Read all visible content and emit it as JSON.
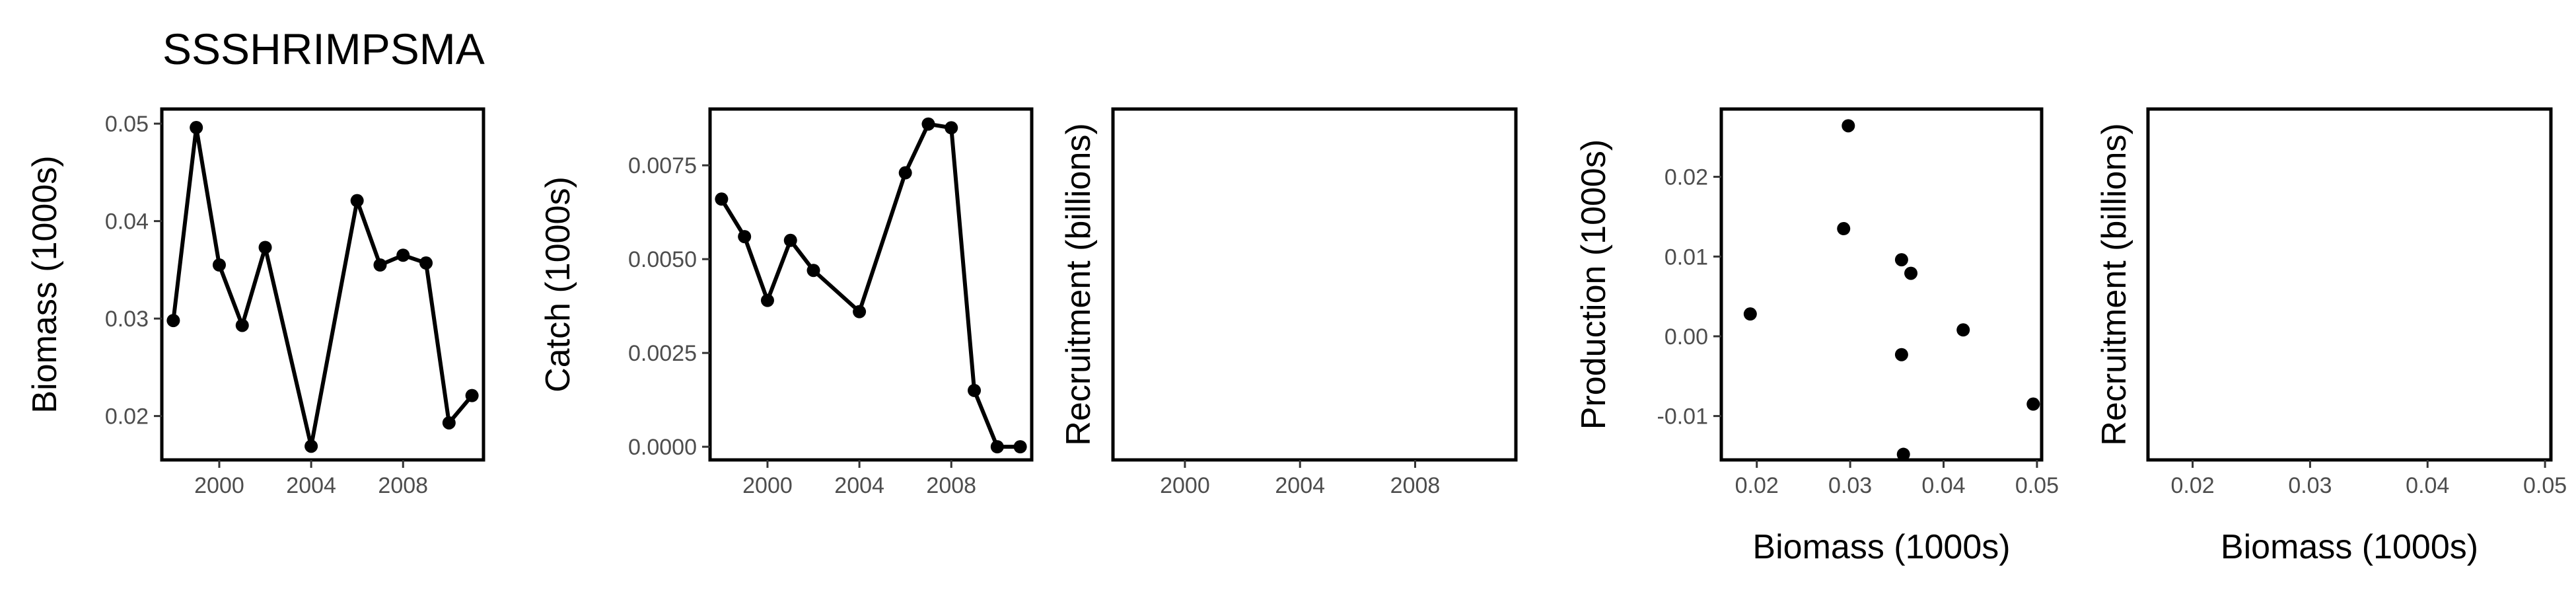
{
  "page": {
    "title": "SSSHRIMPSMA"
  },
  "chart_data": [
    {
      "type": "line",
      "xlabel": "",
      "ylabel": "Biomass (1000s)",
      "xlim": [
        1997.5,
        2011.5
      ],
      "ylim": [
        0.0155,
        0.0515
      ],
      "xticks": [
        2000,
        2004,
        2008
      ],
      "xtick_labels": [
        "2000",
        "2004",
        "2008"
      ],
      "yticks": [
        0.02,
        0.03,
        0.04,
        0.05
      ],
      "ytick_labels": [
        "0.02",
        "0.03",
        "0.04",
        "0.05"
      ],
      "x": [
        1998,
        1999,
        2000,
        2001,
        2002,
        2004,
        2006,
        2007,
        2008,
        2009,
        2010,
        2011
      ],
      "values": [
        0.0298,
        0.0496,
        0.0355,
        0.0293,
        0.0373,
        0.0169,
        0.0421,
        0.0355,
        0.0365,
        0.0357,
        0.0193,
        0.0221
      ],
      "markers": true,
      "grid": false
    },
    {
      "type": "line",
      "xlabel": "",
      "ylabel": "Catch (1000s)",
      "xlim": [
        1997.5,
        2011.5
      ],
      "ylim": [
        -0.00035,
        0.009
      ],
      "xticks": [
        2000,
        2004,
        2008
      ],
      "xtick_labels": [
        "2000",
        "2004",
        "2008"
      ],
      "yticks": [
        0.0,
        0.0025,
        0.005,
        0.0075
      ],
      "ytick_labels": [
        "0.0000",
        "0.0025",
        "0.0050",
        "0.0075"
      ],
      "x": [
        1998,
        1999,
        2000,
        2001,
        2002,
        2004,
        2006,
        2007,
        2008,
        2009,
        2010,
        2011
      ],
      "values": [
        0.0066,
        0.0056,
        0.0039,
        0.0055,
        0.0047,
        0.0036,
        0.0073,
        0.0086,
        0.0085,
        0.0015,
        0.0,
        0.0
      ],
      "markers": true,
      "grid": false
    },
    {
      "type": "line",
      "xlabel": "",
      "ylabel": "Recruitment (billions)",
      "xlim": [
        1997.5,
        2011.5
      ],
      "ylim": [
        0,
        1
      ],
      "xticks": [
        2000,
        2004,
        2008
      ],
      "xtick_labels": [
        "2000",
        "2004",
        "2008"
      ],
      "yticks": [],
      "ytick_labels": [],
      "x": [],
      "values": [],
      "markers": false,
      "grid": false
    },
    {
      "type": "scatter",
      "xlabel": "Biomass (1000s)",
      "ylabel": "Production (1000s)",
      "xlim": [
        0.0162,
        0.0505
      ],
      "ylim": [
        -0.0155,
        0.0285
      ],
      "xticks": [
        0.02,
        0.03,
        0.04,
        0.05
      ],
      "xtick_labels": [
        "0.02",
        "0.03",
        "0.04",
        "0.05"
      ],
      "yticks": [
        -0.01,
        0.0,
        0.01,
        0.02
      ],
      "ytick_labels": [
        "-0.01",
        "0.00",
        "0.01",
        "0.02"
      ],
      "x": [
        0.0193,
        0.0298,
        0.0293,
        0.0355,
        0.0365,
        0.0355,
        0.0421,
        0.0496,
        0.0357
      ],
      "values": [
        0.0028,
        0.0264,
        0.0135,
        0.0096,
        0.0079,
        -0.0023,
        0.0008,
        -0.0085,
        -0.0148
      ],
      "markers": true,
      "grid": false
    },
    {
      "type": "scatter",
      "xlabel": "Biomass (1000s)",
      "ylabel": "Recruitment (billions)",
      "xlim": [
        0.0162,
        0.0505
      ],
      "ylim": [
        0,
        1
      ],
      "xticks": [
        0.02,
        0.03,
        0.04,
        0.05
      ],
      "xtick_labels": [
        "0.02",
        "0.03",
        "0.04",
        "0.05"
      ],
      "yticks": [],
      "ytick_labels": [],
      "x": [],
      "values": [],
      "markers": false,
      "grid": false
    }
  ]
}
